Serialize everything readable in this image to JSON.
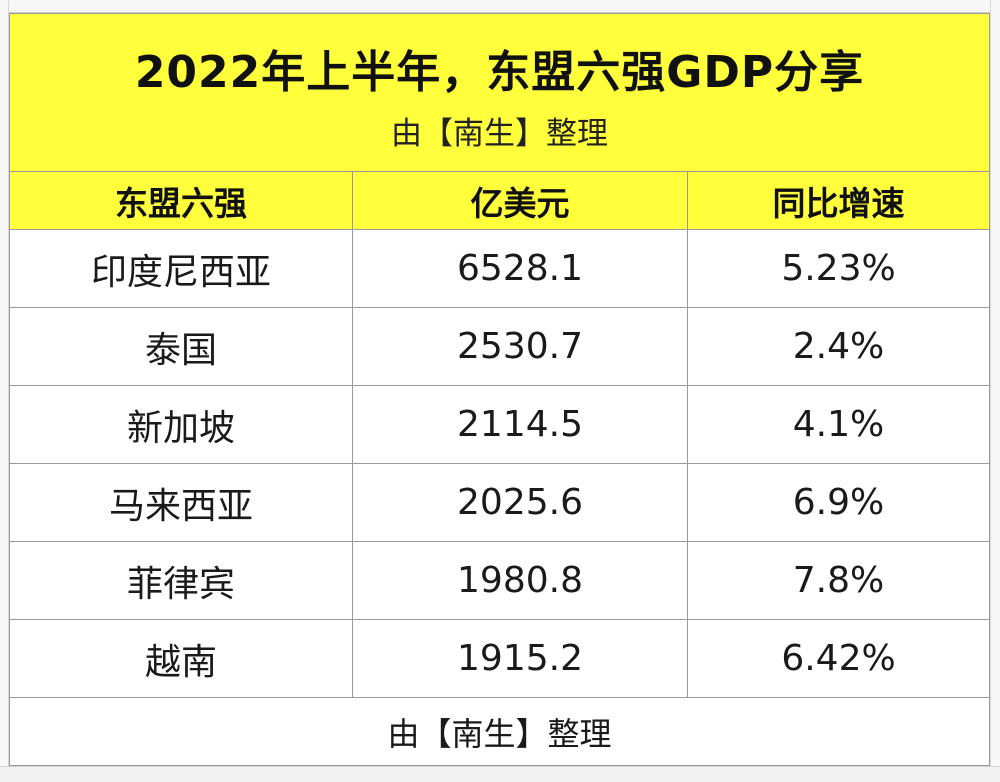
{
  "title": "2022年上半年，东盟六强GDP分享",
  "subtitle": "由【南生】整理",
  "header": {
    "col1": "东盟六强",
    "col2": "亿美元",
    "col3": "同比增速"
  },
  "rows": [
    {
      "country": "印度尼西亚",
      "gdp": "6528.1",
      "growth": "5.23%"
    },
    {
      "country": "泰国",
      "gdp": "2530.7",
      "growth": "2.4%"
    },
    {
      "country": "新加坡",
      "gdp": "2114.5",
      "growth": "4.1%"
    },
    {
      "country": "马来西亚",
      "gdp": "2025.6",
      "growth": "6.9%"
    },
    {
      "country": "菲律宾",
      "gdp": "1980.8",
      "growth": "7.8%"
    },
    {
      "country": "越南",
      "gdp": "1915.2",
      "growth": "6.42%"
    }
  ],
  "footer": "由【南生】整理",
  "colors": {
    "header_bg": "#ffff3c",
    "grid": "#9a9a9a"
  }
}
